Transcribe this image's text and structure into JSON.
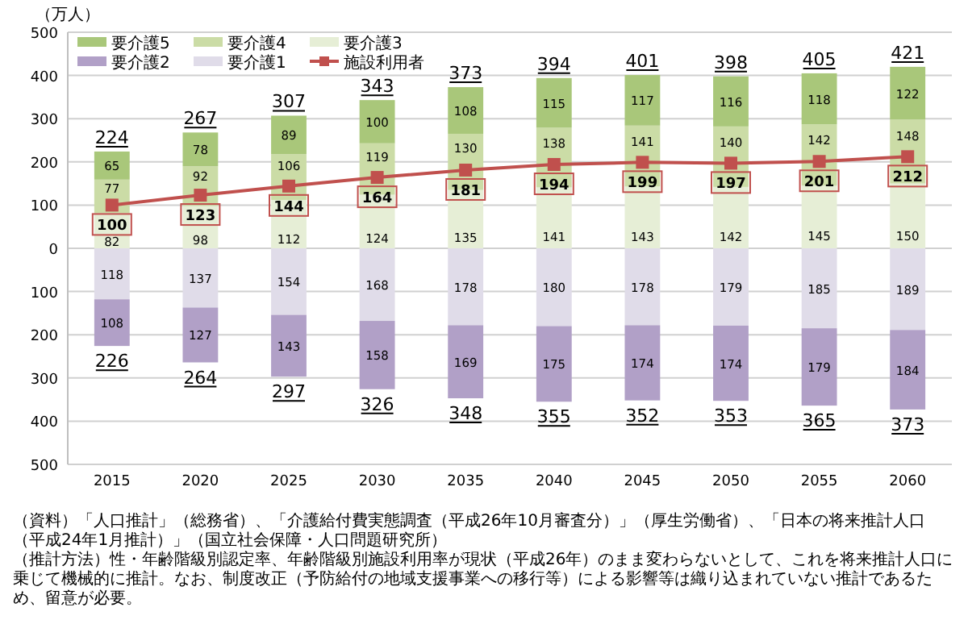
{
  "chart_data": [
    {
      "type": "bar",
      "stacked": true,
      "ylabel": "（万人）",
      "tick_labels": "y",
      "categories": [
        "2015",
        "2020",
        "2025",
        "2030",
        "2035",
        "2040",
        "2045",
        "2050",
        "2055",
        "2060"
      ],
      "series": [
        {
          "name": "要介護3",
          "color": "#e6eed6",
          "values": [
            82,
            98,
            112,
            124,
            135,
            141,
            143,
            142,
            145,
            150
          ],
          "value_labels": [
            "82",
            "98",
            "112",
            "124",
            "135",
            "141",
            "143",
            "142",
            "145",
            "150"
          ]
        },
        {
          "name": "要介護4",
          "color": "#cbdca6",
          "values": [
            77,
            92,
            106,
            119,
            130,
            138,
            141,
            140,
            142,
            148
          ],
          "value_labels": [
            "77",
            "92",
            "106",
            "119",
            "130",
            "138",
            "141",
            "140",
            "142",
            "148"
          ]
        },
        {
          "name": "要介護5",
          "color": "#a9c77a",
          "values": [
            65,
            78,
            89,
            100,
            108,
            115,
            117,
            116,
            118,
            122
          ],
          "value_labels": [
            "65",
            "78",
            "89",
            "100",
            "108",
            "115",
            "117",
            "116",
            "118",
            "122"
          ]
        },
        {
          "name": "施設利用者",
          "type": "line",
          "color": "#c0504d",
          "marker": "square",
          "values": [
            100,
            123,
            144,
            164,
            181,
            194,
            199,
            197,
            201,
            212
          ],
          "value_labels": [
            "100",
            "123",
            "144",
            "164",
            "181",
            "194",
            "199",
            "197",
            "201",
            "212"
          ]
        }
      ],
      "totals": [
        "224",
        "267",
        "307",
        "343",
        "373",
        "394",
        "401",
        "398",
        "405",
        "421"
      ],
      "ylim": [
        0,
        500
      ],
      "yticks": [
        0,
        100,
        200,
        300,
        400,
        500
      ],
      "grid": "y",
      "legend": "top left",
      "annotations": [
        "（資料）「人口推計」（総務省）、「介護給付費実態調査（平成26年10月審査分）」（厚生労働省）、「日本の将来推計人口（平成24年1月推計）」（国立社会保障・人口問題研究所）",
        "（推計方法）性・年齢階級別認定率、年齢階級別施設利用率が現状（平成26年）のまま変わらないとして、これを将来推計人口に乗じて機械的に推計。なお、制度改正（予防給付の地域支援事業への移行等）による影響等は織り込まれていない推計であるため、留意が必要。"
      ]
    },
    {
      "type": "bar",
      "stacked": true,
      "categories": [
        "2015",
        "2020",
        "2025",
        "2030",
        "2035",
        "2040",
        "2045",
        "2050",
        "2055",
        "2060"
      ],
      "series": [
        {
          "name": "要介護1",
          "color": "#e0dce9",
          "values": [
            118,
            137,
            154,
            168,
            178,
            180,
            178,
            179,
            185,
            189
          ],
          "value_labels": [
            "118",
            "137",
            "154",
            "168",
            "178",
            "180",
            "178",
            "179",
            "185",
            "189"
          ]
        },
        {
          "name": "要介護2",
          "color": "#b1a0c7",
          "values": [
            108,
            127,
            143,
            158,
            169,
            175,
            174,
            174,
            179,
            184
          ],
          "value_labels": [
            "108",
            "127",
            "143",
            "158",
            "169",
            "175",
            "174",
            "174",
            "179",
            "184"
          ]
        }
      ],
      "totals": [
        "226",
        "264",
        "297",
        "326",
        "348",
        "355",
        "352",
        "353",
        "365",
        "373"
      ],
      "ylim": [
        500,
        0
      ],
      "yticks": [
        100,
        200,
        300,
        400,
        500
      ],
      "grid": "y",
      "legend": "top left"
    }
  ]
}
